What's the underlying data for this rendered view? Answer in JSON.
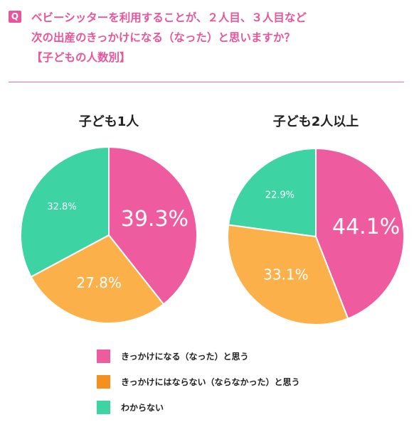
{
  "header": {
    "badge": "Q",
    "title_lines": [
      "ベビーシッターを利用することが、２人目、３人目など",
      "次の出産のきっかけになる（なった）と思いますか？",
      "【子どもの人数別】"
    ]
  },
  "colors": {
    "pink": "#ee5b9f",
    "orange": "#fbb04a",
    "green": "#3dd3a2",
    "accent": "#e8559a"
  },
  "chart_data": [
    {
      "type": "pie",
      "title": "子ども1人",
      "slices": [
        {
          "label": "きっかけになる（なった）と思う",
          "value": 39.3,
          "display": "39.3%",
          "color": "#ee5b9f"
        },
        {
          "label": "きっかけにはならない（ならなかった）と思う",
          "value": 27.8,
          "display": "27.8%",
          "color": "#fbb04a"
        },
        {
          "label": "わからない",
          "value": 32.8,
          "display": "32.8%",
          "color": "#3dd3a2"
        }
      ]
    },
    {
      "type": "pie",
      "title": "子ども2人以上",
      "slices": [
        {
          "label": "きっかけになる（なった）と思う",
          "value": 44.1,
          "display": "44.1%",
          "color": "#ee5b9f"
        },
        {
          "label": "きっかけにはならない（ならなかった）と思う",
          "value": 33.1,
          "display": "33.1%",
          "color": "#fbb04a"
        },
        {
          "label": "わからない",
          "value": 22.9,
          "display": "22.9%",
          "color": "#3dd3a2"
        }
      ]
    }
  ],
  "legend": [
    {
      "label": "きっかけになる（なった）と思う",
      "color": "#ee5b9f"
    },
    {
      "label": "きっかけにはならない（ならなかった）と思う",
      "color": "#f5901e"
    },
    {
      "label": "わからない",
      "color": "#3dd3a2"
    }
  ]
}
